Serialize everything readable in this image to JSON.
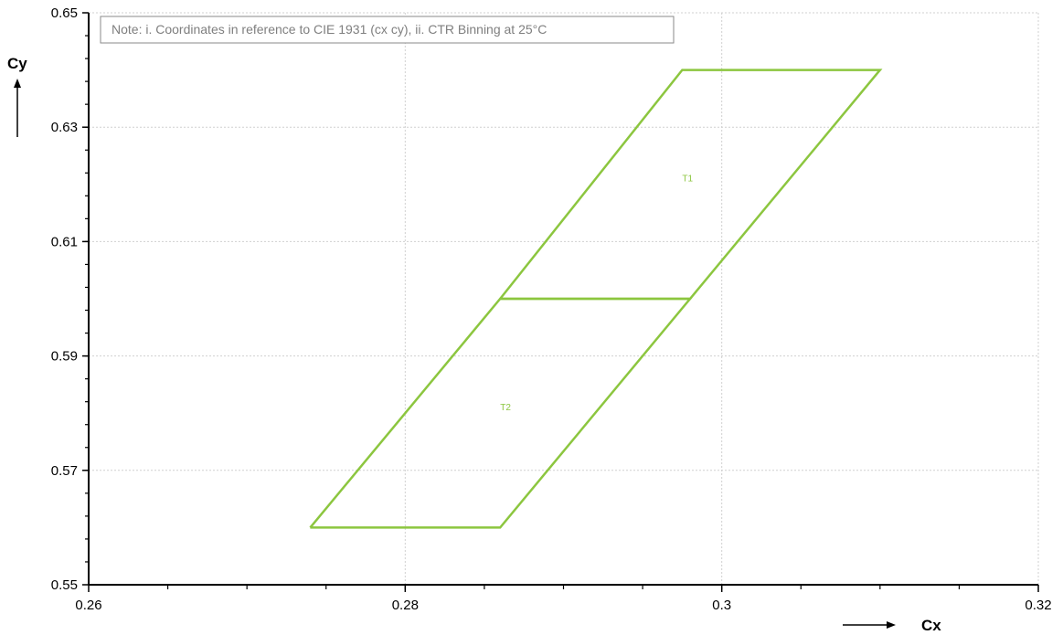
{
  "chart_data": {
    "type": "line",
    "title": "",
    "xlabel": "Cx",
    "ylabel": "Cy",
    "xlim": [
      0.26,
      0.32
    ],
    "ylim": [
      0.55,
      0.65
    ],
    "x_ticks": [
      "0.26",
      "0.28",
      "0.3",
      "0.32"
    ],
    "y_ticks": [
      "0.55",
      "0.57",
      "0.59",
      "0.61",
      "0.63",
      "0.65"
    ],
    "grid": true,
    "note": "Note: i. Coordinates in reference to CIE 1931 (cx cy), ii. CTR Binning at 25°C",
    "series": [
      {
        "name": "T1",
        "points": [
          [
            0.286,
            0.6
          ],
          [
            0.2975,
            0.64
          ],
          [
            0.31,
            0.64
          ],
          [
            0.298,
            0.6
          ],
          [
            0.286,
            0.6
          ]
        ],
        "label_position": [
          0.2975,
          0.6205
        ]
      },
      {
        "name": "T2",
        "points": [
          [
            0.274,
            0.56
          ],
          [
            0.286,
            0.6
          ],
          [
            0.298,
            0.6
          ],
          [
            0.286,
            0.56
          ],
          [
            0.274,
            0.56
          ]
        ],
        "label_position": [
          0.286,
          0.5805
        ]
      }
    ]
  },
  "colors": {
    "region_line": "#8cc63f",
    "grid": "#d0d0d0",
    "axis": "#000000"
  }
}
